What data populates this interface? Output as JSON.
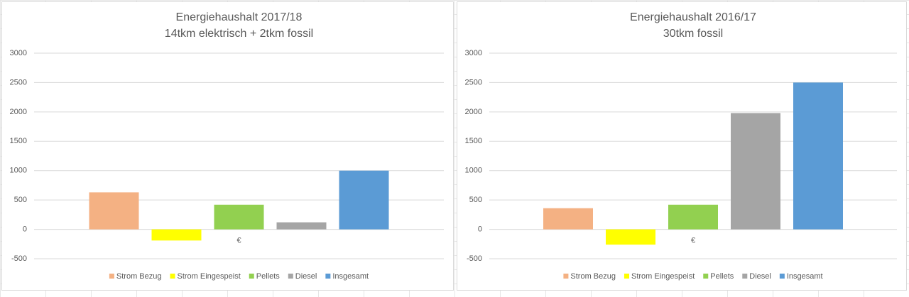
{
  "chart_data": [
    {
      "type": "bar",
      "title": "Energiehaushalt 2017/18",
      "subtitle": "14tkm elektrisch + 2tkm fossil",
      "categories": [
        "€"
      ],
      "series": [
        {
          "name": "Strom Bezug",
          "color": "#f4b183",
          "values": [
            630
          ]
        },
        {
          "name": "Strom Eingespeist",
          "color": "#ffff00",
          "values": [
            -190
          ]
        },
        {
          "name": "Pellets",
          "color": "#92d050",
          "values": [
            420
          ]
        },
        {
          "name": "Diesel",
          "color": "#a5a5a5",
          "values": [
            120
          ]
        },
        {
          "name": "Insgesamt",
          "color": "#5b9bd5",
          "values": [
            1000
          ]
        }
      ],
      "ylim": [
        -500,
        3000
      ],
      "yticks": [
        -500,
        0,
        500,
        1000,
        1500,
        2000,
        2500,
        3000
      ],
      "grid": true,
      "legend": "bottom"
    },
    {
      "type": "bar",
      "title": "Energiehaushalt 2016/17",
      "subtitle": "30tkm fossil",
      "categories": [
        "€"
      ],
      "series": [
        {
          "name": "Strom Bezug",
          "color": "#f4b183",
          "values": [
            360
          ]
        },
        {
          "name": "Strom Eingespeist",
          "color": "#ffff00",
          "values": [
            -260
          ]
        },
        {
          "name": "Pellets",
          "color": "#92d050",
          "values": [
            420
          ]
        },
        {
          "name": "Diesel",
          "color": "#a5a5a5",
          "values": [
            1980
          ]
        },
        {
          "name": "Insgesamt",
          "color": "#5b9bd5",
          "values": [
            2500
          ]
        }
      ],
      "ylim": [
        -500,
        3000
      ],
      "yticks": [
        -500,
        0,
        500,
        1000,
        1500,
        2000,
        2500,
        3000
      ],
      "grid": true,
      "legend": "bottom"
    }
  ]
}
